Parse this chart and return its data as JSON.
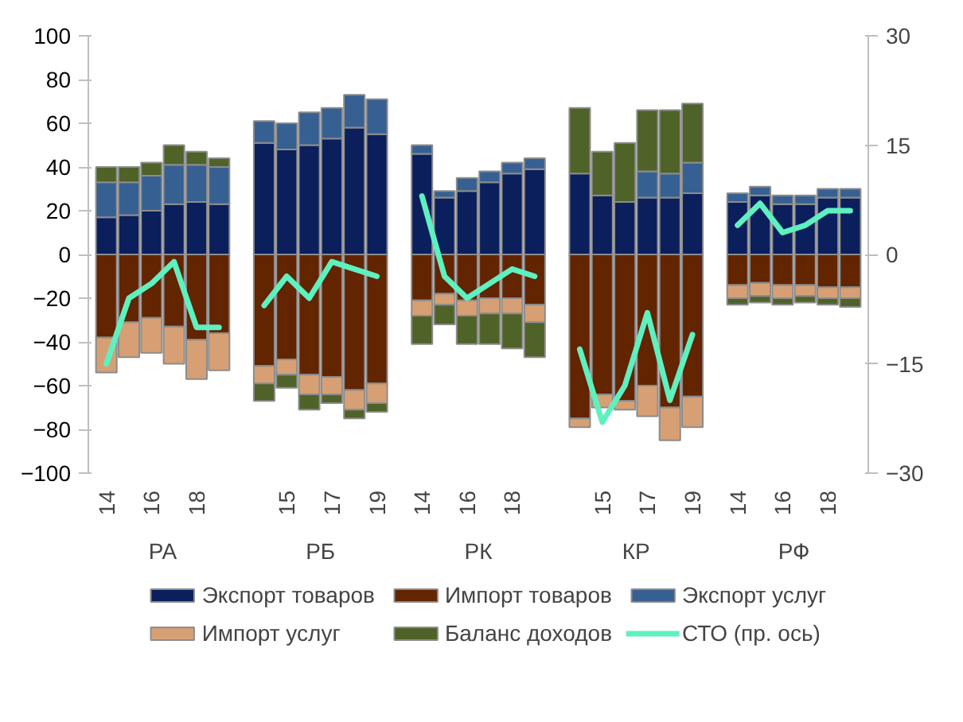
{
  "chart_data": {
    "type": "bar",
    "stacked": true,
    "categories": [
      "14",
      null,
      "16",
      null,
      "18",
      null,
      null,
      null,
      "15",
      null,
      "17",
      null,
      "19",
      null,
      "14",
      null,
      "16",
      null,
      "18",
      null,
      null,
      null,
      "15",
      null,
      "17",
      null,
      "19",
      null,
      "14",
      null,
      "16",
      null,
      "18",
      null
    ],
    "annotations": [
      "РА",
      "РБ",
      "РК",
      "КР",
      "РФ"
    ],
    "ylim": [
      -100,
      100
    ],
    "yticks": [
      -100,
      -80,
      -60,
      -40,
      -20,
      0,
      20,
      40,
      60,
      80,
      100
    ],
    "y2lim": [
      -30,
      30
    ],
    "y2ticks": [
      -30,
      -15,
      0,
      15,
      30
    ],
    "legend": "bottom",
    "series": [
      {
        "name": "Экспорт товаров",
        "color": "#0a1f5c",
        "values": [
          17,
          18,
          20,
          23,
          24,
          23,
          null,
          51,
          48,
          50,
          53,
          58,
          55,
          null,
          46,
          26,
          29,
          33,
          37,
          39,
          null,
          37,
          27,
          24,
          26,
          26,
          28,
          null,
          24,
          27,
          23,
          23,
          26,
          26
        ]
      },
      {
        "name": "Импорт товаров",
        "color": "#632400",
        "values": [
          -38,
          -31,
          -29,
          -33,
          -39,
          -36,
          null,
          -51,
          -48,
          -55,
          -56,
          -62,
          -59,
          null,
          -21,
          -18,
          -21,
          -20,
          -20,
          -23,
          null,
          -75,
          -64,
          -67,
          -60,
          -70,
          -65,
          null,
          -14,
          -13,
          -14,
          -14,
          -15,
          -15
        ]
      },
      {
        "name": "Экспорт услуг",
        "color": "#376092",
        "values": [
          16,
          15,
          16,
          18,
          17,
          17,
          null,
          10,
          12,
          15,
          14,
          15,
          16,
          null,
          4,
          3,
          6,
          5,
          5,
          5,
          null,
          null,
          null,
          null,
          12,
          11,
          14,
          null,
          4,
          4,
          4,
          4,
          4,
          4
        ]
      },
      {
        "name": "Импорт услуг",
        "color": "#d6a074",
        "values": [
          -16,
          -16,
          -16,
          -17,
          -18,
          -17,
          null,
          -8,
          -7,
          -9,
          -8,
          -9,
          -9,
          null,
          -7,
          -5,
          -7,
          -7,
          -7,
          -8,
          null,
          -4,
          -6,
          -4,
          -14,
          -15,
          -14,
          null,
          -6,
          -6,
          -6,
          -5,
          -5,
          -5
        ]
      },
      {
        "name": "Баланс доходов",
        "color": "#4f6228",
        "values": [
          7,
          7,
          6,
          9,
          6,
          4,
          null,
          -8,
          -6,
          -7,
          -4,
          -4,
          -4,
          null,
          -13,
          -9,
          -13,
          -14,
          -16,
          -16,
          null,
          30,
          20,
          27,
          28,
          29,
          27,
          null,
          -3,
          -3,
          -3,
          -3,
          -3,
          -4
        ]
      },
      {
        "name": "СТО (пр. ось)",
        "type": "line",
        "axis": "y2",
        "color": "#5ff0c0",
        "line_style": "solid",
        "values": [
          -15,
          -6,
          -4,
          -1,
          -10,
          -10,
          null,
          -7,
          -3,
          -6,
          -1,
          -2,
          -3,
          null,
          8,
          -3,
          -6,
          -4,
          -2,
          -3,
          null,
          -13,
          -23,
          -18,
          -8,
          -20,
          -11,
          null,
          4,
          7,
          3,
          4,
          6,
          6
        ]
      }
    ]
  }
}
